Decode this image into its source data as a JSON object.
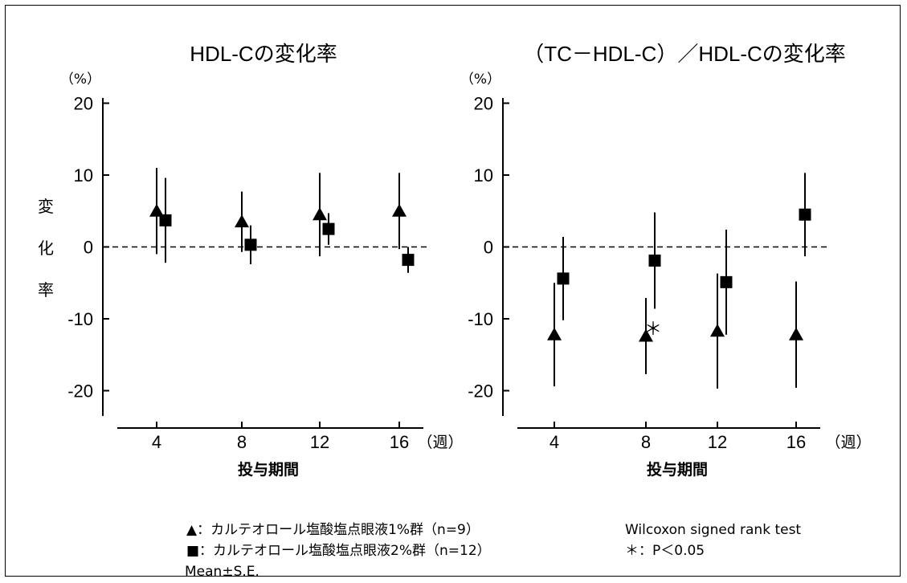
{
  "chart_data": [
    {
      "type": "scatter",
      "title": "HDL-Cの変化率",
      "ylabel": "変化率",
      "yunit": "（%）",
      "xlabel": "投与期間",
      "xunit": "（週）",
      "ylim": [
        -22,
        22
      ],
      "yticks": [
        20,
        10,
        0,
        -10,
        -20
      ],
      "categories": [
        "4",
        "8",
        "12",
        "16"
      ],
      "series": [
        {
          "marker": "triangle",
          "values": [
            5,
            3.5,
            4.5,
            5
          ],
          "se": [
            6,
            4.2,
            5.8,
            5.3
          ]
        },
        {
          "marker": "square",
          "values": [
            3.7,
            0.3,
            2.5,
            -1.8
          ],
          "se": [
            5.9,
            2.7,
            2.2,
            1.8
          ]
        }
      ]
    },
    {
      "type": "scatter",
      "title": "（TC－HDL-C）／HDL-Cの変化率",
      "yunit": "（%）",
      "xlabel": "投与期間",
      "xunit": "（週）",
      "ylim": [
        -22,
        22
      ],
      "yticks": [
        20,
        10,
        0,
        -10,
        -20
      ],
      "categories": [
        "4",
        "8",
        "12",
        "16"
      ],
      "annotation": "＊",
      "series": [
        {
          "marker": "triangle",
          "values": [
            -12.2,
            -12.4,
            -11.7,
            -12.2
          ],
          "se": [
            7.2,
            5.3,
            8.0,
            7.4
          ]
        },
        {
          "marker": "square",
          "values": [
            -4.4,
            -1.9,
            -4.9,
            4.5
          ],
          "se": [
            5.8,
            6.7,
            7.3,
            5.8
          ]
        }
      ]
    }
  ],
  "legend": {
    "group1": "▲：カルテオロール塩酸塩点眼液1%群（n=9）",
    "group2": "■：カルテオロール塩酸塩点眼液2%群（n=12）",
    "stat": "Mean±S.E.",
    "test": "Wilcoxon signed rank test",
    "signif": "＊：P＜0.05"
  }
}
